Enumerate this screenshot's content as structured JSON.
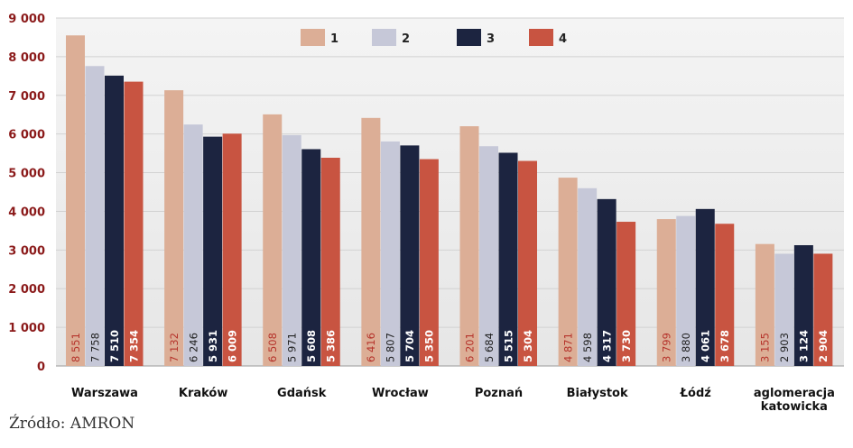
{
  "source_note": "Źródło: AMRON",
  "legend_entries": [
    "1",
    "2",
    "3",
    "4"
  ],
  "colors": {
    "series": [
      "#dcae96",
      "#c6c8d8",
      "#1c2440",
      "#c85441"
    ],
    "plot_background": "#ededed",
    "y_tick_label": "#8b1a1a",
    "bar_label_light": "#b5322a",
    "bar_label_dark_text": "#ffffff",
    "bar_label_mid_text": "#222222"
  },
  "chart_data": {
    "type": "bar",
    "categories": [
      "Warszawa",
      "Kraków",
      "Gdańsk",
      "Wrocław",
      "Poznań",
      "Białystok",
      "Łódź",
      "aglomeracja katowicka"
    ],
    "series": [
      {
        "name": "1",
        "values": [
          8551,
          7132,
          6508,
          6416,
          6201,
          4871,
          3799,
          3155
        ],
        "labels": [
          "8 551",
          "7 132",
          "6 508",
          "6 416",
          "6 201",
          "4 871",
          "3 799",
          "3 155"
        ]
      },
      {
        "name": "2",
        "values": [
          7758,
          6246,
          5971,
          5807,
          5684,
          4598,
          3880,
          2903
        ],
        "labels": [
          "7 758",
          "6 246",
          "5 971",
          "5 807",
          "5 684",
          "4 598",
          "3 880",
          "2 903"
        ]
      },
      {
        "name": "3",
        "values": [
          7510,
          5931,
          5608,
          5704,
          5515,
          4317,
          4061,
          3124
        ],
        "labels": [
          "7 510",
          "5 931",
          "5 608",
          "5 704",
          "5 515",
          "4 317",
          "4 061",
          "3 124"
        ]
      },
      {
        "name": "4",
        "values": [
          7354,
          6009,
          5386,
          5350,
          5304,
          3730,
          3678,
          2904
        ],
        "labels": [
          "7 354",
          "6 009",
          "5 386",
          "5 350",
          "5 304",
          "3 730",
          "3 678",
          "2 904"
        ]
      }
    ],
    "y_ticks": [
      "0",
      "1 000",
      "2 000",
      "3 000",
      "4 000",
      "5 000",
      "6 000",
      "7 000",
      "8 000",
      "9 000"
    ],
    "ylim": [
      0,
      9000
    ],
    "grid": true,
    "legend_position": "top-center"
  }
}
